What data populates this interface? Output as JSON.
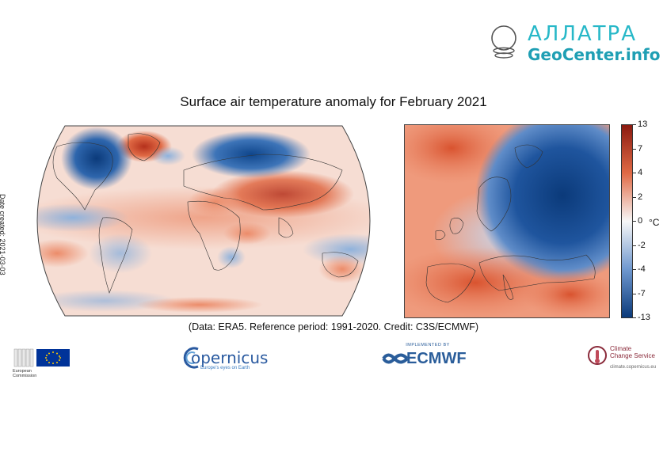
{
  "brand": {
    "line1": "АЛЛАТРА",
    "line2": "GeoCenter.info",
    "colors": {
      "primary": "#27b8c8",
      "secondary": "#1f9fb4"
    }
  },
  "chart_data": {
    "type": "heatmap",
    "title": "Surface air temperature anomaly for February 2021",
    "panels": [
      {
        "name": "world",
        "projection": "robinson"
      },
      {
        "name": "europe",
        "projection": "regional"
      }
    ],
    "colorbar": {
      "unit": "°C",
      "ticks": [
        13,
        7,
        4,
        2,
        0,
        -2,
        -4,
        -7,
        -13
      ],
      "tick_labels": [
        "13",
        "7",
        "4",
        "2",
        "0",
        "-2",
        "-4",
        "-7",
        "-13"
      ],
      "range": [
        -13,
        13
      ],
      "colors": {
        "max": "#8b1a10",
        "warm": "#e06a45",
        "neutral": "#f7f7f7",
        "cool": "#6f98cf",
        "min": "#0b3a7a"
      }
    },
    "credit": "(Data: ERA5.  Reference period: 1991-2020.  Credit: C3S/ECMWF)",
    "date_note": "Date created: 2021-03-03"
  },
  "logos": {
    "eu": {
      "caption_line1": "European",
      "caption_line2": "Commission"
    },
    "copernicus": {
      "text": "opernicus",
      "tagline": "Europe's eyes on Earth"
    },
    "ecmwf": {
      "implemented_by": "IMPLEMENTED BY",
      "text": "ECMWF"
    },
    "ccs": {
      "line1": "Climate",
      "line2": "Change Service",
      "url": "climate.copernicus.eu"
    }
  }
}
